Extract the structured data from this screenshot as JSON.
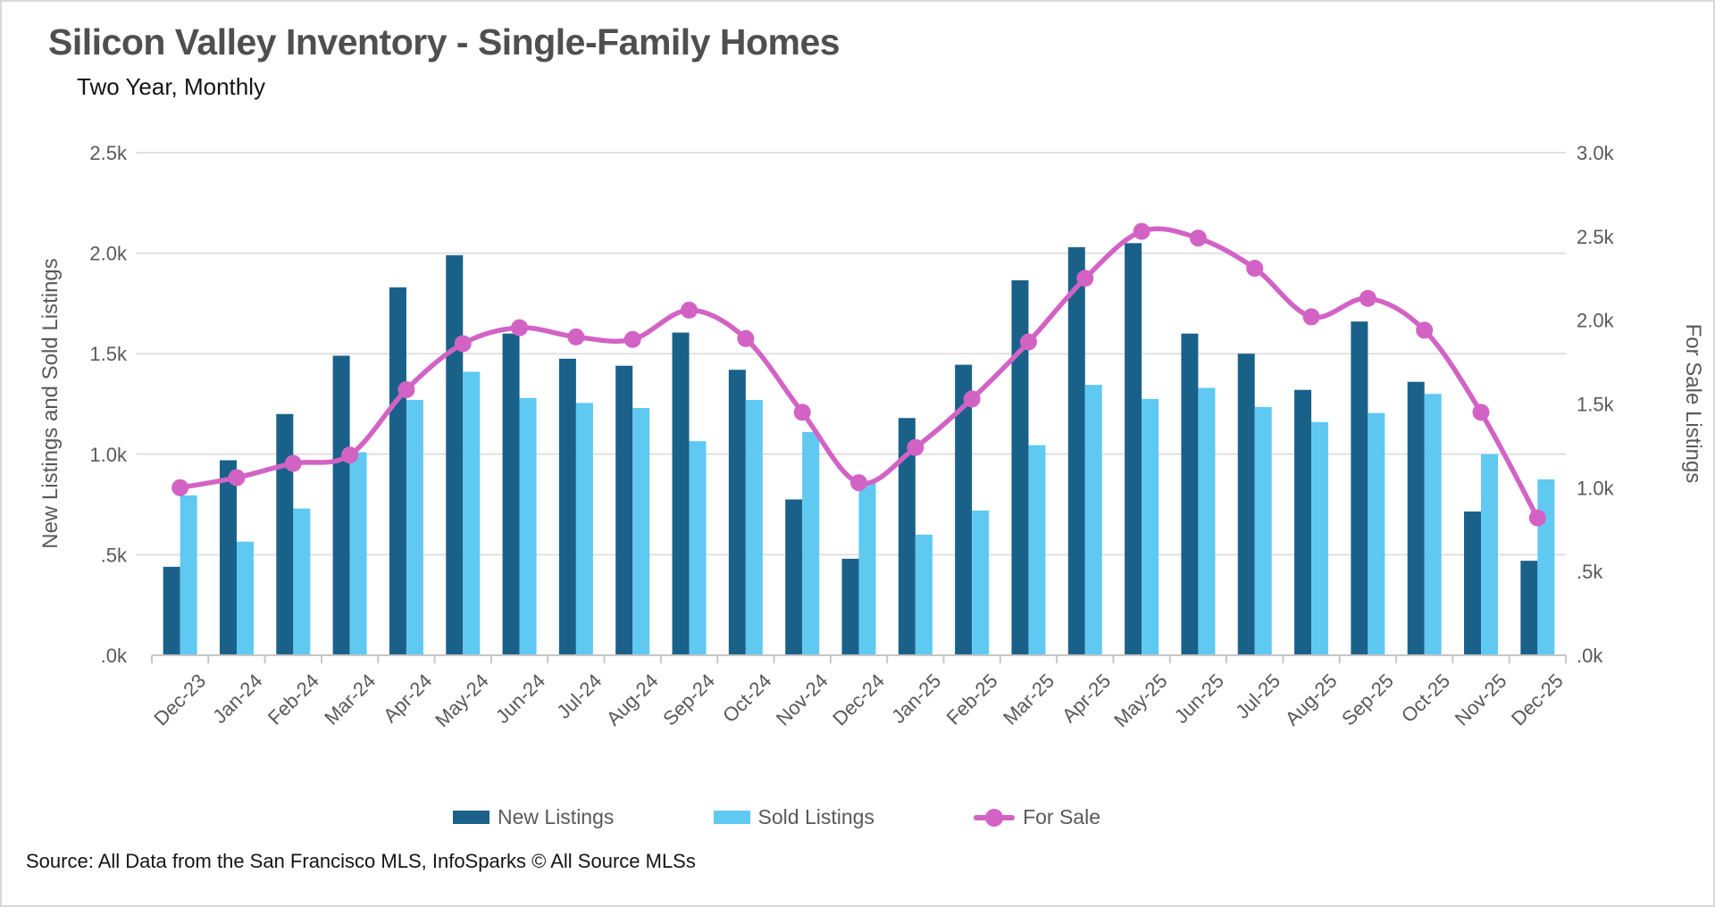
{
  "title": "Silicon Valley Inventory - Single-Family Homes",
  "subtitle": "Two Year, Monthly",
  "source_note": "Source: All Data from the San Francisco MLS, InfoSparks © All Source MLSs",
  "colors": {
    "new_listings": "#1a618a",
    "sold_listings": "#5fc9f2",
    "for_sale": "#d263c4",
    "gridline": "#e0e0e0",
    "axis_line": "#c6c6c6",
    "tick_text": "#595959",
    "title_text": "#4f4f4f"
  },
  "chart_data": {
    "type": "bar",
    "subtype": "dual-axis bar + smoothed line combo",
    "categories": [
      "Dec-23",
      "Jan-24",
      "Feb-24",
      "Mar-24",
      "Apr-24",
      "May-24",
      "Jun-24",
      "Jul-24",
      "Aug-24",
      "Sep-24",
      "Oct-24",
      "Nov-24",
      "Dec-24",
      "Jan-25",
      "Feb-25",
      "Mar-25",
      "Apr-25",
      "May-25",
      "Jun-25",
      "Jul-25",
      "Aug-25",
      "Sep-25",
      "Oct-25",
      "Nov-25",
      "Dec-25"
    ],
    "series": [
      {
        "name": "New Listings",
        "type": "bar",
        "axis": "left",
        "color": "#1a618a",
        "values": [
          440,
          970,
          1200,
          1490,
          1830,
          1990,
          1600,
          1475,
          1440,
          1605,
          1420,
          775,
          480,
          1180,
          1445,
          1865,
          2030,
          2050,
          1600,
          1500,
          1320,
          1660,
          1360,
          715,
          470
        ]
      },
      {
        "name": "Sold Listings",
        "type": "bar",
        "axis": "left",
        "color": "#5fc9f2",
        "values": [
          795,
          565,
          730,
          1010,
          1270,
          1410,
          1280,
          1255,
          1230,
          1065,
          1270,
          1110,
          855,
          600,
          720,
          1045,
          1345,
          1275,
          1330,
          1235,
          1160,
          1205,
          1300,
          1000,
          875
        ]
      },
      {
        "name": "For Sale",
        "type": "line",
        "axis": "right",
        "color": "#d263c4",
        "values": [
          1000,
          1060,
          1145,
          1195,
          1585,
          1860,
          1955,
          1900,
          1885,
          2060,
          1890,
          1450,
          1030,
          1240,
          1530,
          1870,
          2250,
          2530,
          2490,
          2310,
          2020,
          2130,
          1940,
          1450,
          820
        ]
      }
    ],
    "left_axis": {
      "title": "New Listings and Sold Listings",
      "tick_labels": [
        "2.5k",
        "2.0k",
        "1.5k",
        "1.0k",
        ".5k",
        ".0k"
      ],
      "min": 0,
      "max": 2500
    },
    "right_axis": {
      "title": "For Sale Listings",
      "tick_labels": [
        "3.0k",
        "2.5k",
        "2.0k",
        "1.5k",
        "1.0k",
        ".5k",
        ".0k"
      ],
      "min": 0,
      "max": 3000
    },
    "grid": true,
    "legend_position": "bottom"
  }
}
